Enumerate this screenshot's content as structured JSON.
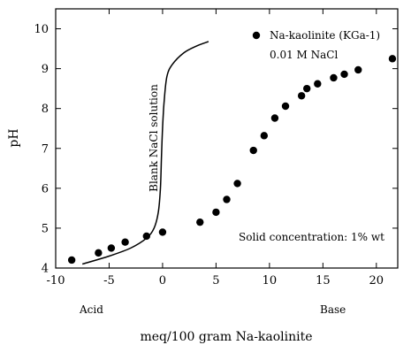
{
  "chart_data": {
    "type": "scatter",
    "xlabel": "meq/100 gram Na-kaolinite",
    "ylabel": "pH",
    "xlim": [
      -10,
      22
    ],
    "ylim": [
      4,
      10.5
    ],
    "x_ticks": [
      -10,
      -5,
      0,
      5,
      10,
      15,
      20
    ],
    "x_tick_labels": [
      "-10",
      "-5",
      "0",
      "5",
      "10",
      "15",
      "20"
    ],
    "y_ticks": [
      4,
      5,
      6,
      7,
      8,
      9,
      10
    ],
    "y_tick_labels": [
      "4",
      "5",
      "6",
      "7",
      "8",
      "9",
      "10"
    ],
    "grid": false,
    "legend": {
      "position": "top-right",
      "marker_label": "Na-kaolinite (KGa-1)",
      "sub_label": "0.01 M NaCl"
    },
    "annotations": {
      "curve_label": "Blank NaCl solution",
      "solid_concentration": "Solid concentration: 1% wt",
      "acid": "Acid",
      "base": "Base"
    },
    "series": [
      {
        "name": "Na-kaolinite (KGa-1)",
        "kind": "scatter",
        "points": [
          {
            "x": -8.5,
            "y": 4.2
          },
          {
            "x": -6.0,
            "y": 4.38
          },
          {
            "x": -4.8,
            "y": 4.5
          },
          {
            "x": -3.5,
            "y": 4.65
          },
          {
            "x": -1.5,
            "y": 4.8
          },
          {
            "x": 0.0,
            "y": 4.9
          },
          {
            "x": 3.5,
            "y": 5.15
          },
          {
            "x": 5.0,
            "y": 5.4
          },
          {
            "x": 6.0,
            "y": 5.72
          },
          {
            "x": 7.0,
            "y": 6.12
          },
          {
            "x": 8.5,
            "y": 6.95
          },
          {
            "x": 9.5,
            "y": 7.32
          },
          {
            "x": 10.5,
            "y": 7.76
          },
          {
            "x": 11.5,
            "y": 8.06
          },
          {
            "x": 13.0,
            "y": 8.32
          },
          {
            "x": 13.5,
            "y": 8.5
          },
          {
            "x": 14.5,
            "y": 8.62
          },
          {
            "x": 16.0,
            "y": 8.77
          },
          {
            "x": 17.0,
            "y": 8.86
          },
          {
            "x": 18.3,
            "y": 8.97
          },
          {
            "x": 21.5,
            "y": 9.25
          }
        ]
      },
      {
        "name": "Blank NaCl solution",
        "kind": "line",
        "points": [
          {
            "x": -7.5,
            "y": 4.1
          },
          {
            "x": -5.0,
            "y": 4.3
          },
          {
            "x": -3.0,
            "y": 4.5
          },
          {
            "x": -1.5,
            "y": 4.75
          },
          {
            "x": -0.8,
            "y": 5.0
          },
          {
            "x": -0.4,
            "y": 5.4
          },
          {
            "x": -0.2,
            "y": 6.0
          },
          {
            "x": -0.1,
            "y": 6.8
          },
          {
            "x": 0.0,
            "y": 7.5
          },
          {
            "x": 0.15,
            "y": 8.2
          },
          {
            "x": 0.4,
            "y": 8.8
          },
          {
            "x": 0.9,
            "y": 9.1
          },
          {
            "x": 2.0,
            "y": 9.4
          },
          {
            "x": 3.2,
            "y": 9.57
          },
          {
            "x": 4.3,
            "y": 9.68
          }
        ]
      }
    ]
  }
}
